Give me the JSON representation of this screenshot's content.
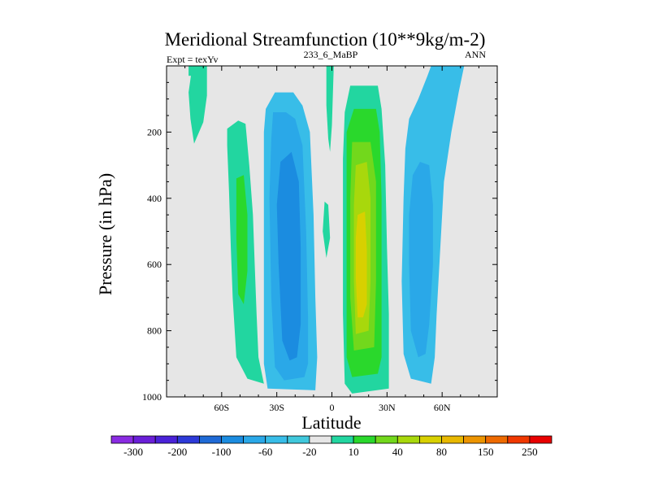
{
  "chart_data": {
    "type": "contour",
    "title": "Meridional Streamfunction (10**9kg/m-2)",
    "subtitle_left": "Expt = texYv",
    "subtitle_center": "233_6_MaBP",
    "subtitle_right": "ANN",
    "xlabel": "Latitude",
    "ylabel": "Pressure (in hPa)",
    "xlim": [
      -90,
      90
    ],
    "ylim": [
      1000,
      0
    ],
    "x_ticks": [
      {
        "value": -60,
        "label": "60S"
      },
      {
        "value": -30,
        "label": "30S"
      },
      {
        "value": 0,
        "label": "0"
      },
      {
        "value": 30,
        "label": "30N"
      },
      {
        "value": 60,
        "label": "60N"
      }
    ],
    "y_ticks": [
      {
        "value": 200,
        "label": "200"
      },
      {
        "value": 400,
        "label": "400"
      },
      {
        "value": 600,
        "label": "600"
      },
      {
        "value": 800,
        "label": "800"
      },
      {
        "value": 1000,
        "label": "1000"
      }
    ],
    "levels": [
      -300,
      -250,
      -200,
      -150,
      -100,
      -80,
      -60,
      -40,
      -20,
      -10,
      10,
      20,
      40,
      60,
      80,
      100,
      150,
      200,
      250,
      300
    ],
    "colorbar_labels": [
      "-300",
      "-200",
      "-100",
      "-60",
      "-20",
      "10",
      "40",
      "80",
      "150",
      "250"
    ],
    "colorbar_colors": [
      "#8a2be2",
      "#6a1fd8",
      "#4a22d8",
      "#2d3ad8",
      "#1f6ad6",
      "#1b8ce0",
      "#2aa8e8",
      "#38bde8",
      "#40c8dc",
      "#e6e6e6",
      "#22d6a0",
      "#2ad82c",
      "#72d81c",
      "#a8d80c",
      "#d8d000",
      "#e8b800",
      "#ec9400",
      "#ee6a00",
      "#f03800",
      "#e80000"
    ],
    "background_color": "#e6e6e6",
    "contours": [
      {
        "level": 10,
        "color": "#22d6a0",
        "points": [
          [
            -76,
            0
          ],
          [
            -68,
            0
          ],
          [
            -68,
            90
          ],
          [
            -70,
            170
          ],
          [
            -75,
            235
          ],
          [
            -77,
            160
          ],
          [
            -78,
            80
          ]
        ]
      },
      {
        "level": 10,
        "color": "#22d6a0",
        "points": [
          [
            -57,
            190
          ],
          [
            -51,
            165
          ],
          [
            -47,
            175
          ],
          [
            -45,
            300
          ],
          [
            -43,
            450
          ],
          [
            -42,
            600
          ],
          [
            -41,
            750
          ],
          [
            -40,
            880
          ],
          [
            -37,
            960
          ],
          [
            -46,
            945
          ],
          [
            -52,
            880
          ],
          [
            -54,
            700
          ],
          [
            -55,
            550
          ],
          [
            -56,
            380
          ],
          [
            -57,
            240
          ]
        ]
      },
      {
        "level": 20,
        "color": "#2ad82c",
        "points": [
          [
            -52,
            340
          ],
          [
            -48,
            330
          ],
          [
            -46,
            450
          ],
          [
            -46,
            620
          ],
          [
            -48,
            720
          ],
          [
            -51,
            690
          ],
          [
            -52,
            520
          ]
        ]
      },
      {
        "level": 10,
        "color": "#22d6a0",
        "points": [
          [
            -3,
            0
          ],
          [
            1,
            0
          ],
          [
            0,
            180
          ],
          [
            -1,
            260
          ],
          [
            -2,
            220
          ],
          [
            -3,
            120
          ]
        ]
      },
      {
        "level": 10,
        "color": "#22d6a0",
        "points": [
          [
            -4,
            410
          ],
          [
            -2,
            420
          ],
          [
            -1,
            520
          ],
          [
            -3,
            580
          ],
          [
            -5,
            500
          ]
        ]
      },
      {
        "level": -10,
        "color": "#38bde8",
        "points": [
          [
            -36,
            130
          ],
          [
            -31,
            80
          ],
          [
            -21,
            80
          ],
          [
            -16,
            120
          ],
          [
            -12,
            200
          ],
          [
            -10,
            450
          ],
          [
            -9,
            700
          ],
          [
            -8,
            880
          ],
          [
            -9,
            980
          ],
          [
            -35,
            975
          ],
          [
            -37,
            900
          ],
          [
            -37,
            650
          ],
          [
            -37,
            380
          ],
          [
            -37,
            200
          ]
        ]
      },
      {
        "level": -20,
        "color": "#2aa8e8",
        "points": [
          [
            -32,
            140
          ],
          [
            -25,
            140
          ],
          [
            -20,
            160
          ],
          [
            -16,
            240
          ],
          [
            -14,
            500
          ],
          [
            -13,
            760
          ],
          [
            -13,
            900
          ],
          [
            -15,
            940
          ],
          [
            -26,
            950
          ],
          [
            -31,
            910
          ],
          [
            -33,
            700
          ],
          [
            -34,
            400
          ],
          [
            -33,
            220
          ]
        ]
      },
      {
        "level": -40,
        "color": "#1b8ce0",
        "points": [
          [
            -28,
            290
          ],
          [
            -22,
            260
          ],
          [
            -18,
            350
          ],
          [
            -17,
            550
          ],
          [
            -17,
            780
          ],
          [
            -19,
            880
          ],
          [
            -23,
            890
          ],
          [
            -27,
            830
          ],
          [
            -29,
            600
          ],
          [
            -30,
            420
          ]
        ]
      },
      {
        "level": 10,
        "color": "#22d6a0",
        "points": [
          [
            7,
            140
          ],
          [
            10,
            60
          ],
          [
            25,
            60
          ],
          [
            27,
            130
          ],
          [
            29,
            300
          ],
          [
            30,
            550
          ],
          [
            31,
            750
          ],
          [
            31,
            900
          ],
          [
            31,
            975
          ],
          [
            11,
            990
          ],
          [
            7,
            960
          ],
          [
            6,
            750
          ],
          [
            6,
            500
          ],
          [
            6,
            280
          ]
        ]
      },
      {
        "level": 20,
        "color": "#2ad82c",
        "points": [
          [
            8,
            200
          ],
          [
            12,
            130
          ],
          [
            24,
            130
          ],
          [
            26,
            200
          ],
          [
            27,
            400
          ],
          [
            27,
            700
          ],
          [
            27,
            880
          ],
          [
            25,
            930
          ],
          [
            11,
            940
          ],
          [
            8,
            880
          ],
          [
            8,
            650
          ],
          [
            8,
            400
          ]
        ]
      },
      {
        "level": 40,
        "color": "#72d81c",
        "points": [
          [
            11,
            230
          ],
          [
            21,
            230
          ],
          [
            24,
            350
          ],
          [
            24,
            650
          ],
          [
            23,
            850
          ],
          [
            12,
            860
          ],
          [
            10,
            700
          ],
          [
            10,
            400
          ]
        ]
      },
      {
        "level": 60,
        "color": "#a8d80c",
        "points": [
          [
            13,
            300
          ],
          [
            19,
            290
          ],
          [
            21,
            400
          ],
          [
            21,
            650
          ],
          [
            20,
            800
          ],
          [
            13,
            810
          ],
          [
            12,
            650
          ],
          [
            12,
            420
          ]
        ]
      },
      {
        "level": 80,
        "color": "#d8d000",
        "points": [
          [
            14,
            450
          ],
          [
            18,
            440
          ],
          [
            19,
            560
          ],
          [
            19,
            720
          ],
          [
            17,
            760
          ],
          [
            14,
            760
          ],
          [
            13,
            640
          ],
          [
            13,
            520
          ]
        ]
      },
      {
        "level": -10,
        "color": "#38bde8",
        "points": [
          [
            42,
            160
          ],
          [
            47,
            100
          ],
          [
            52,
            30
          ],
          [
            54,
            0
          ],
          [
            72,
            0
          ],
          [
            69,
            80
          ],
          [
            65,
            200
          ],
          [
            61,
            350
          ],
          [
            59,
            550
          ],
          [
            57,
            750
          ],
          [
            56,
            880
          ],
          [
            54,
            960
          ],
          [
            43,
            945
          ],
          [
            39,
            870
          ],
          [
            38,
            650
          ],
          [
            39,
            400
          ],
          [
            40,
            250
          ]
        ]
      },
      {
        "level": -20,
        "color": "#2aa8e8",
        "points": [
          [
            44,
            330
          ],
          [
            48,
            290
          ],
          [
            53,
            300
          ],
          [
            55,
            420
          ],
          [
            55,
            600
          ],
          [
            53,
            780
          ],
          [
            51,
            870
          ],
          [
            47,
            880
          ],
          [
            43,
            800
          ],
          [
            42,
            600
          ],
          [
            42,
            450
          ]
        ]
      },
      {
        "level": 10,
        "color": "#22d6a0",
        "points": [
          [
            -78,
            0
          ],
          [
            -76,
            0
          ],
          [
            -76,
            30
          ],
          [
            -78,
            30
          ]
        ]
      }
    ]
  }
}
